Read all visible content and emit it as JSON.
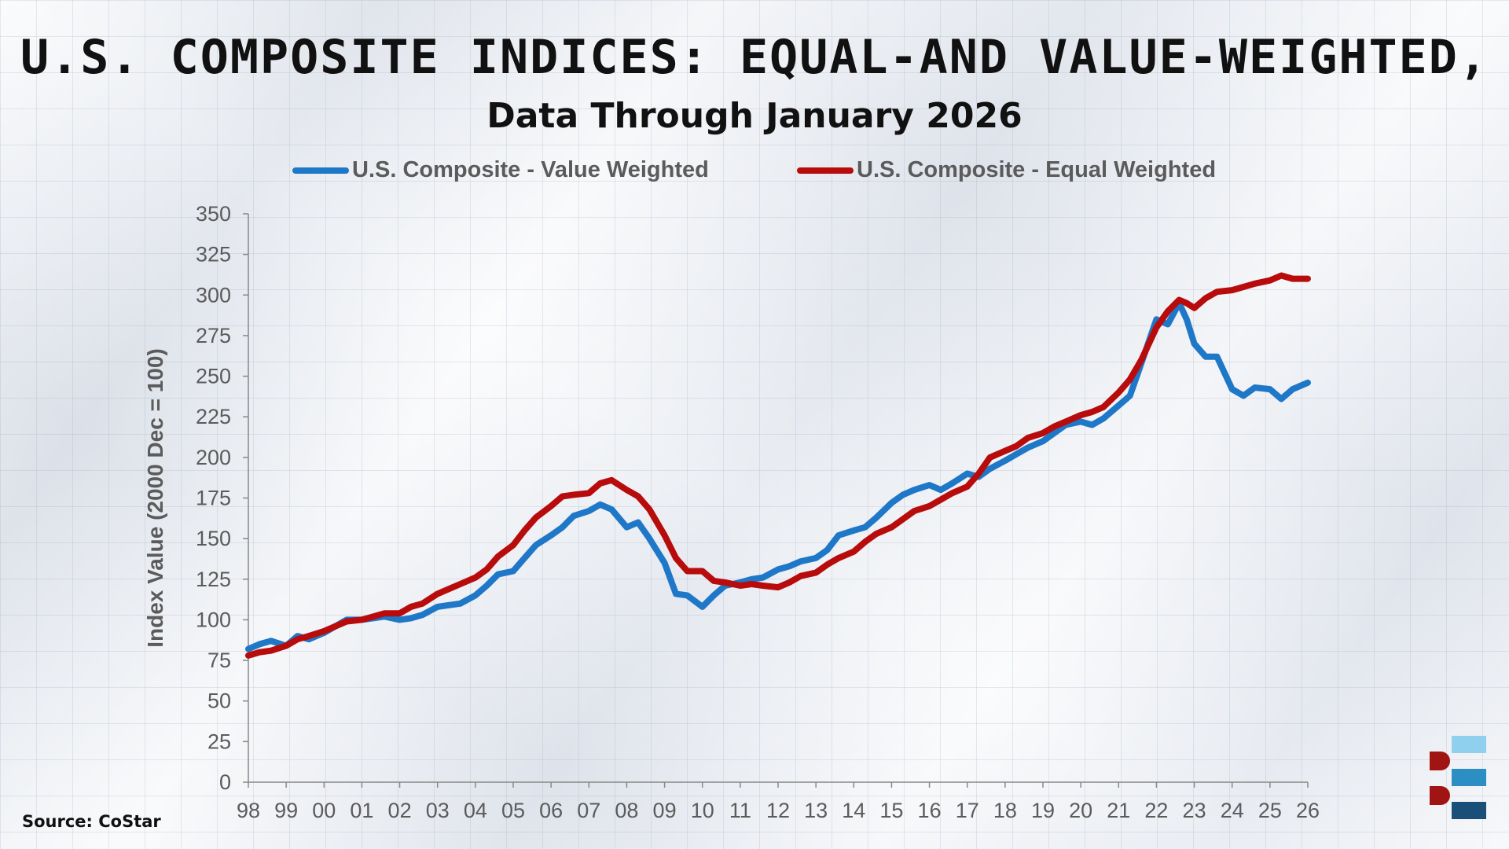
{
  "title": "U.S. COMPOSITE INDICES: EQUAL-AND VALUE-WEIGHTED,",
  "subtitle": "Data Through January 2026",
  "source": "Source: CoStar",
  "colors": {
    "value_weighted": "#1f77c8",
    "equal_weighted": "#b80c0c",
    "axis_text": "#5b5b5b"
  },
  "icons": {
    "logo": "brand-logo-icon"
  },
  "chart_data": {
    "type": "line",
    "title": "U.S. COMPOSITE INDICES: EQUAL-AND VALUE-WEIGHTED,",
    "subtitle": "Data Through January 2026",
    "xlabel": "",
    "ylabel": "Index Value (2000 Dec = 100)",
    "ylim": [
      0,
      350
    ],
    "yticks": [
      0,
      25,
      50,
      75,
      100,
      125,
      150,
      175,
      200,
      225,
      250,
      275,
      300,
      325,
      350
    ],
    "xlim": [
      1998,
      2026
    ],
    "xtick_labels": [
      "98",
      "99",
      "00",
      "01",
      "02",
      "03",
      "04",
      "05",
      "06",
      "07",
      "08",
      "09",
      "10",
      "11",
      "12",
      "13",
      "14",
      "15",
      "16",
      "17",
      "18",
      "19",
      "20",
      "21",
      "22",
      "23",
      "24",
      "25",
      "26"
    ],
    "grid": false,
    "legend": "top",
    "series": [
      {
        "name": "U.S. Composite - Value Weighted",
        "color": "#1f77c8",
        "x": [
          1998.0,
          1998.3,
          1998.6,
          1999.0,
          1999.3,
          1999.6,
          2000.0,
          2000.3,
          2000.6,
          2001.0,
          2001.3,
          2001.6,
          2002.0,
          2002.3,
          2002.6,
          2003.0,
          2003.3,
          2003.6,
          2004.0,
          2004.3,
          2004.6,
          2005.0,
          2005.3,
          2005.6,
          2006.0,
          2006.3,
          2006.6,
          2007.0,
          2007.3,
          2007.6,
          2008.0,
          2008.3,
          2008.6,
          2009.0,
          2009.3,
          2009.6,
          2010.0,
          2010.3,
          2010.6,
          2011.0,
          2011.3,
          2011.6,
          2012.0,
          2012.3,
          2012.6,
          2013.0,
          2013.3,
          2013.6,
          2014.0,
          2014.3,
          2014.6,
          2015.0,
          2015.3,
          2015.6,
          2016.0,
          2016.3,
          2016.6,
          2017.0,
          2017.3,
          2017.6,
          2018.0,
          2018.3,
          2018.6,
          2019.0,
          2019.3,
          2019.6,
          2020.0,
          2020.3,
          2020.6,
          2021.0,
          2021.3,
          2021.6,
          2022.0,
          2022.3,
          2022.6,
          2022.8,
          2023.0,
          2023.3,
          2023.6,
          2024.0,
          2024.3,
          2024.6,
          2025.0,
          2025.3,
          2025.6,
          2026.0
        ],
        "values": [
          82,
          85,
          87,
          84,
          90,
          88,
          92,
          96,
          100,
          100,
          101,
          102,
          100,
          101,
          103,
          108,
          109,
          110,
          115,
          121,
          128,
          130,
          138,
          146,
          152,
          157,
          164,
          167,
          171,
          168,
          157,
          160,
          150,
          135,
          116,
          115,
          108,
          115,
          121,
          123,
          125,
          126,
          131,
          133,
          136,
          138,
          143,
          152,
          155,
          157,
          163,
          172,
          177,
          180,
          183,
          180,
          184,
          190,
          188,
          193,
          198,
          202,
          206,
          210,
          215,
          220,
          222,
          220,
          224,
          232,
          238,
          258,
          285,
          282,
          295,
          285,
          270,
          262,
          262,
          242,
          238,
          243,
          242,
          236,
          242,
          246
        ]
      },
      {
        "name": "U.S. Composite - Equal Weighted",
        "color": "#b80c0c",
        "x": [
          1998.0,
          1998.3,
          1998.6,
          1999.0,
          1999.3,
          1999.6,
          2000.0,
          2000.3,
          2000.6,
          2001.0,
          2001.3,
          2001.6,
          2002.0,
          2002.3,
          2002.6,
          2003.0,
          2003.3,
          2003.6,
          2004.0,
          2004.3,
          2004.6,
          2005.0,
          2005.3,
          2005.6,
          2006.0,
          2006.3,
          2006.6,
          2007.0,
          2007.3,
          2007.6,
          2008.0,
          2008.3,
          2008.6,
          2009.0,
          2009.3,
          2009.6,
          2010.0,
          2010.3,
          2010.6,
          2011.0,
          2011.3,
          2011.6,
          2012.0,
          2012.3,
          2012.6,
          2013.0,
          2013.3,
          2013.6,
          2014.0,
          2014.3,
          2014.6,
          2015.0,
          2015.3,
          2015.6,
          2016.0,
          2016.3,
          2016.6,
          2017.0,
          2017.3,
          2017.6,
          2018.0,
          2018.3,
          2018.6,
          2019.0,
          2019.3,
          2019.6,
          2020.0,
          2020.3,
          2020.6,
          2021.0,
          2021.3,
          2021.6,
          2022.0,
          2022.3,
          2022.6,
          2022.8,
          2023.0,
          2023.3,
          2023.6,
          2024.0,
          2024.3,
          2024.6,
          2025.0,
          2025.3,
          2025.6,
          2026.0
        ],
        "values": [
          78,
          80,
          81,
          84,
          88,
          90,
          93,
          96,
          99,
          100,
          102,
          104,
          104,
          108,
          110,
          116,
          119,
          122,
          126,
          131,
          139,
          146,
          155,
          163,
          170,
          176,
          177,
          178,
          184,
          186,
          180,
          176,
          168,
          152,
          138,
          130,
          130,
          124,
          123,
          121,
          122,
          121,
          120,
          123,
          127,
          129,
          134,
          138,
          142,
          148,
          153,
          157,
          162,
          167,
          170,
          174,
          178,
          182,
          190,
          200,
          204,
          207,
          212,
          215,
          219,
          222,
          226,
          228,
          231,
          240,
          248,
          260,
          280,
          290,
          297,
          295,
          292,
          298,
          302,
          303,
          305,
          307,
          309,
          312,
          310,
          310
        ]
      }
    ]
  }
}
